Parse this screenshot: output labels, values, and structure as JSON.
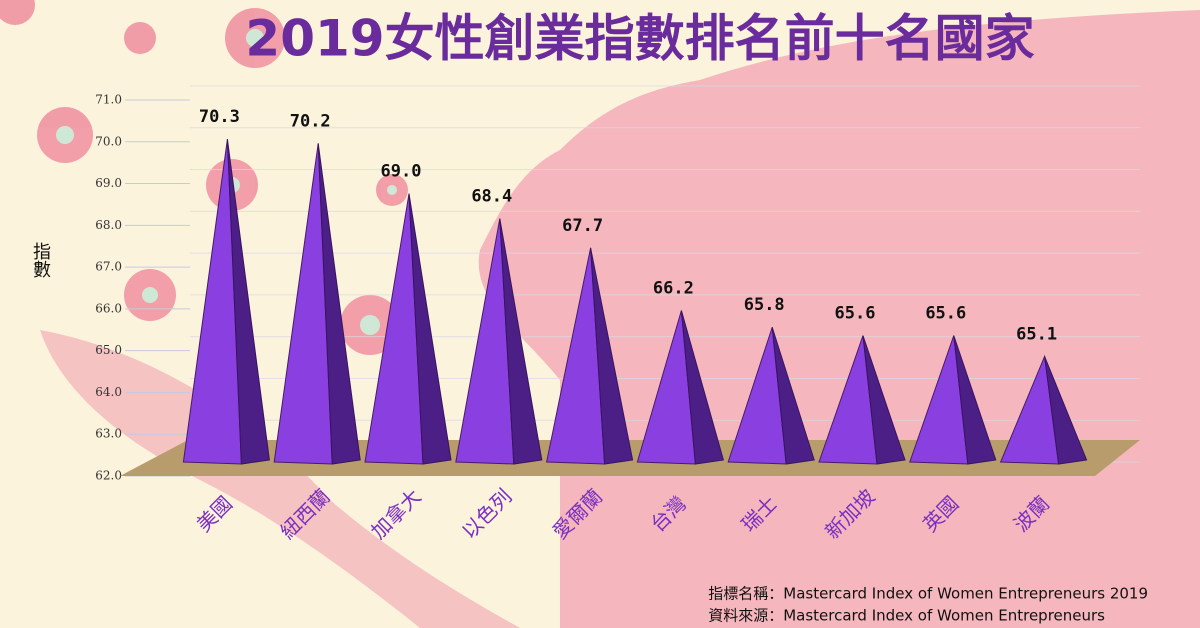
{
  "chart_data": {
    "type": "pyramid",
    "title": "2019女性創業指數排名前十名國家",
    "y_label": "指數",
    "categories": [
      "美國",
      "紐西蘭",
      "加拿大",
      "以色列",
      "愛爾蘭",
      "台灣",
      "瑞士",
      "新加坡",
      "英國",
      "波蘭"
    ],
    "values": [
      70.3,
      70.2,
      69.0,
      68.4,
      67.7,
      66.2,
      65.8,
      65.6,
      65.6,
      65.1
    ],
    "value_labels": [
      "70.3",
      "70.2",
      "69.0",
      "68.4",
      "67.7",
      "66.2",
      "65.8",
      "65.6",
      "65.6",
      "65.1"
    ],
    "color": "#8a3fe0",
    "ylim": [
      62,
      71
    ],
    "yticks": [
      {
        "value": 62,
        "label": "62.0"
      },
      {
        "value": 63,
        "label": "63.0"
      },
      {
        "value": 64,
        "label": "64.0"
      },
      {
        "value": 65,
        "label": "65.0"
      },
      {
        "value": 66,
        "label": "66.0"
      },
      {
        "value": 67,
        "label": "67.0"
      },
      {
        "value": 68,
        "label": "68.0"
      },
      {
        "value": 69,
        "label": "69.0"
      },
      {
        "value": 70,
        "label": "70.0"
      },
      {
        "value": 71,
        "label": "71.0"
      }
    ],
    "grid": true,
    "notes": [
      "指標名稱：Mastercard Index of Women Entrepreneurs 2019",
      "資料來源：Mastercard Index of Women Entrepreneurs"
    ]
  }
}
